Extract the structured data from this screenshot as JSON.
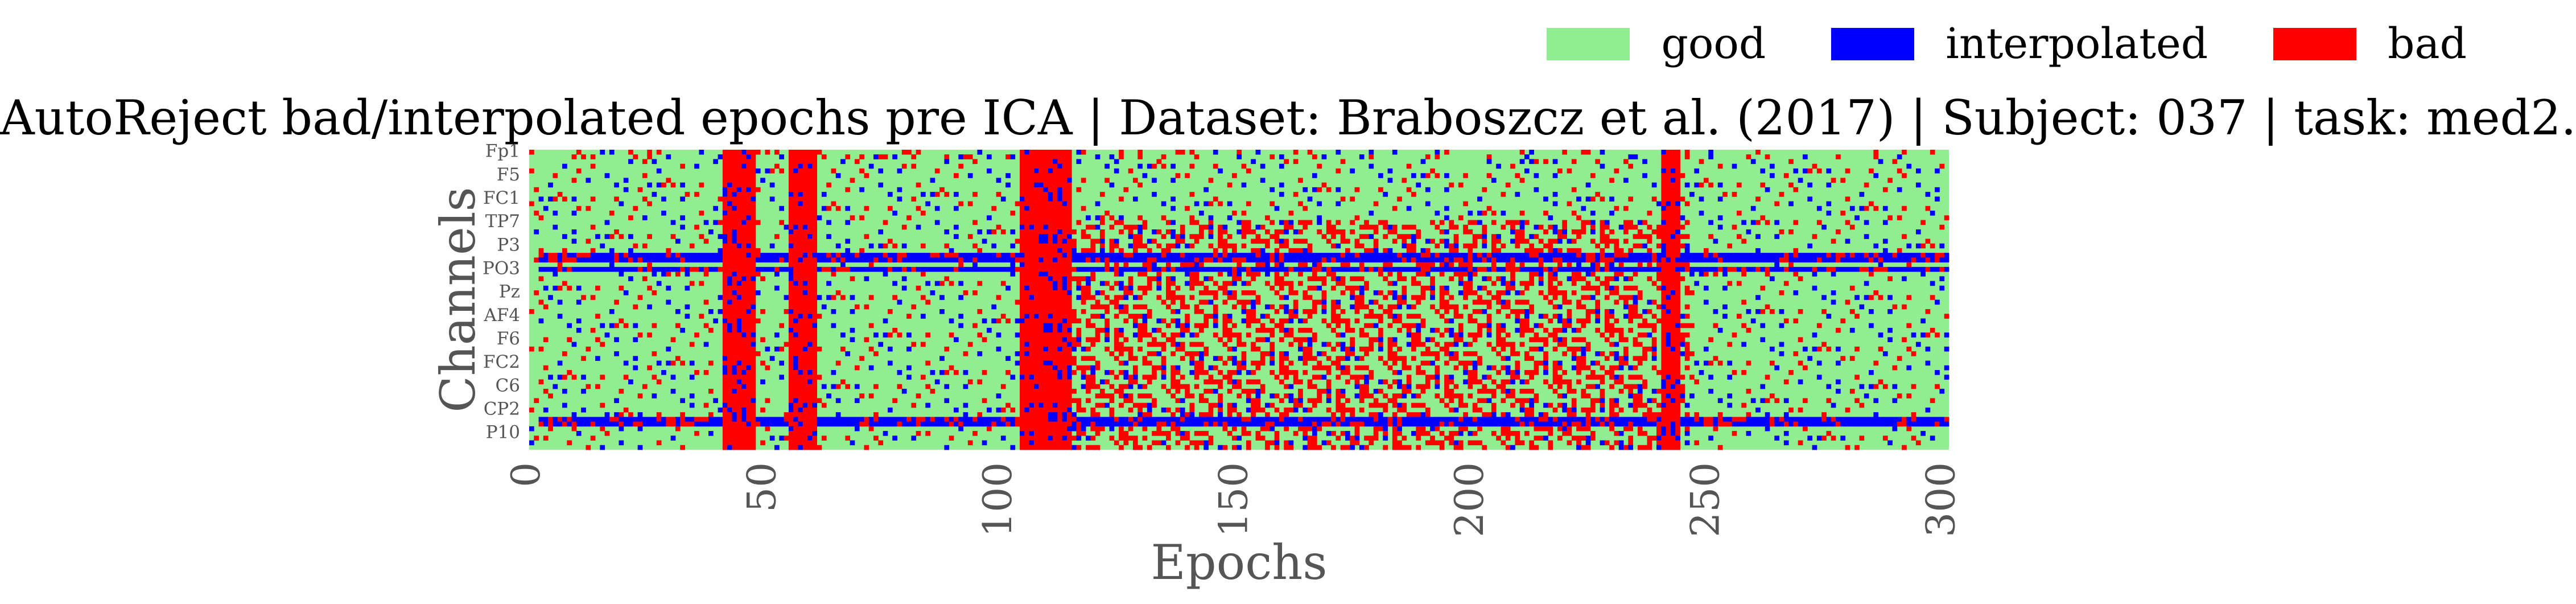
{
  "legend": {
    "items": [
      {
        "label": "good",
        "color": "#90EE90"
      },
      {
        "label": "interpolated",
        "color": "#0000FF"
      },
      {
        "label": "bad",
        "color": "#FF0000"
      }
    ]
  },
  "chart_data": {
    "type": "heatmap",
    "title": "AutoReject bad/interpolated epochs pre ICA | Dataset: Braboszcz et al. (2017) | Subject: 037 | task: med2.",
    "xlabel": "Epochs",
    "ylabel": "Channels",
    "x_range": [
      0,
      301
    ],
    "x_ticks": [
      0,
      50,
      100,
      150,
      200,
      250,
      300
    ],
    "y_tick_labels": [
      "Fp1",
      "F5",
      "FC1",
      "TP7",
      "P3",
      "PO3",
      "Pz",
      "AF4",
      "F6",
      "FC2",
      "C6",
      "CP2",
      "P10"
    ],
    "n_channels": 64,
    "n_epochs": 301,
    "colors": {
      "good": "#90EE90",
      "interpolated": "#0000FF",
      "bad": "#FF0000"
    },
    "category_codes": {
      "0": "good",
      "1": "interpolated",
      "2": "bad"
    },
    "bad_epoch_bands": [
      [
        41,
        47
      ],
      [
        55,
        60
      ],
      [
        104,
        114
      ],
      [
        240,
        243
      ]
    ],
    "interpolated_channel_rows": [
      22,
      23,
      25,
      57,
      58
    ],
    "dense_bad_epoch_range": [
      115,
      245
    ],
    "dense_bad_channel_range": [
      15,
      63
    ]
  }
}
